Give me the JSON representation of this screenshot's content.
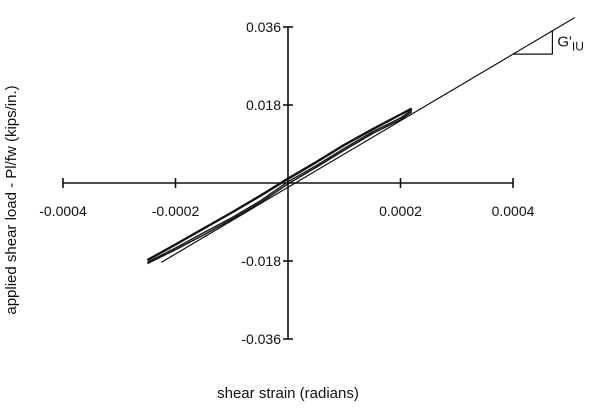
{
  "chart_data": {
    "type": "line",
    "xlabel": "shear strain (radians)",
    "ylabel": "applied shear load - Pl/fw (kips/in.)",
    "xlim": [
      -0.0004,
      0.0004
    ],
    "ylim": [
      -0.036,
      0.036
    ],
    "x_ticks": [
      -0.0004,
      -0.0002,
      0.0002,
      0.0004
    ],
    "x_tick_labels": [
      "-0.0004",
      "-0.0002",
      "0.0002",
      "0.0004"
    ],
    "y_ticks": [
      0.036,
      0.018,
      -0.018,
      -0.036
    ],
    "y_tick_labels": [
      "0.036",
      "0.018",
      "-0.018",
      "-0.036"
    ],
    "annotation": {
      "base": "G'",
      "subscript": "IU"
    },
    "series": [
      {
        "kind": "fit",
        "x": [
          -0.000225,
          0.00051
        ],
        "y": [
          -0.0183,
          0.0382
        ]
      },
      {
        "kind": "data",
        "x": [
          -0.00025,
          -0.0002,
          -0.00015,
          -0.0001,
          -5e-05,
          0,
          5e-05,
          0.0001,
          0.00015,
          0.0002,
          0.00022
        ],
        "y": [
          -0.0183,
          -0.015,
          -0.0115,
          -0.008,
          -0.0042,
          0.0003,
          0.004,
          0.008,
          0.0118,
          0.015,
          0.0168
        ]
      },
      {
        "kind": "data",
        "x": [
          -0.00025,
          -0.0002,
          -0.00015,
          -0.0001,
          -5e-05,
          0,
          5e-05,
          0.0001,
          0.00015,
          0.0002,
          0.00022
        ],
        "y": [
          -0.0178,
          -0.0142,
          -0.0105,
          -0.0068,
          -0.003,
          0.001,
          0.0048,
          0.0088,
          0.0124,
          0.0158,
          0.0172
        ]
      },
      {
        "kind": "data",
        "x": [
          -0.00025,
          -0.0002,
          -0.00015,
          -0.0001,
          -5e-05,
          0,
          5e-05,
          0.0001,
          0.00015,
          0.0002,
          0.00022
        ],
        "y": [
          -0.0186,
          -0.0154,
          -0.012,
          -0.0084,
          -0.0046,
          -0.0002,
          0.0036,
          0.0076,
          0.0114,
          0.0146,
          0.0164
        ]
      }
    ]
  }
}
